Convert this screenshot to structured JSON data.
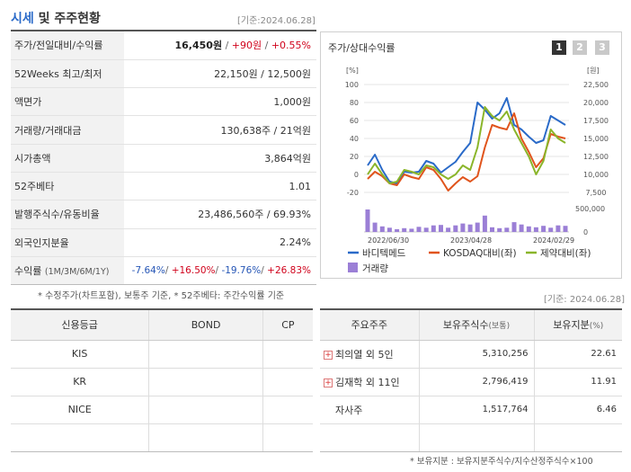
{
  "header": {
    "title_part1": "시세",
    "title_part2": "및 주주현황",
    "base_date": "[기준:2024.06.28]"
  },
  "quote": {
    "rows": [
      {
        "label": "주가/전일대비/수익률",
        "price": "16,450원",
        "change": "+90원",
        "rate": "+0.55%"
      },
      {
        "label": "52Weeks 최고/최저",
        "value": "22,150원 / 12,500원"
      },
      {
        "label": "액면가",
        "value": "1,000원"
      },
      {
        "label": "거래량/거래대금",
        "value": "130,638주 / 21억원"
      },
      {
        "label": "시가총액",
        "value": "3,864억원"
      },
      {
        "label": "52주베타",
        "value": "1.01"
      },
      {
        "label": "발행주식수/유동비율",
        "value": "23,486,560주 / 69.93%"
      },
      {
        "label": "외국인지분율",
        "value": "2.24%"
      }
    ],
    "returns": {
      "label": "수익률",
      "label_sub": "(1M/3M/6M/1Y)",
      "r1m": "-7.64%",
      "r3m": "+16.50%",
      "r6m": "-19.76%",
      "r1y": "+26.83%"
    },
    "note": "* 수정주가(차트포함), 보통주 기준, * 52주베타: 주간수익률 기준"
  },
  "chart_panel": {
    "title": "주가/상대수익률",
    "period_buttons": [
      "1",
      "2",
      "3"
    ]
  },
  "chart_data": {
    "type": "line",
    "left_axis_unit": "[%]",
    "right_axis_unit": "[원]",
    "left_ticks": [
      100,
      80,
      60,
      40,
      20,
      0,
      -20
    ],
    "right_ticks": [
      "22,500",
      "20,000",
      "17,500",
      "15,000",
      "12,500",
      "10,000",
      "7,500"
    ],
    "volume_tick": "500,000",
    "volume_tick_zero": "0",
    "x_labels": [
      "2022/06/30",
      "2023/04/28",
      "2024/02/29"
    ],
    "ylim_left": [
      -20,
      100
    ],
    "series": [
      {
        "name": "바디텍메드",
        "color": "#2a6ac8",
        "values": [
          10,
          22,
          5,
          -8,
          -10,
          3,
          2,
          3,
          15,
          12,
          2,
          8,
          14,
          25,
          35,
          80,
          72,
          62,
          68,
          85,
          55,
          50,
          42,
          35,
          38,
          65,
          60,
          55
        ]
      },
      {
        "name": "KOSDAQ대비(좌)",
        "color": "#e0541c",
        "values": [
          -5,
          3,
          -2,
          -10,
          -12,
          0,
          -3,
          -5,
          8,
          5,
          -5,
          -18,
          -10,
          -3,
          -8,
          -2,
          30,
          55,
          52,
          50,
          68,
          40,
          25,
          8,
          18,
          45,
          42,
          40
        ]
      },
      {
        "name": "제약대비(좌)",
        "color": "#8ab52a",
        "values": [
          0,
          12,
          0,
          -10,
          -8,
          5,
          3,
          0,
          10,
          8,
          0,
          -5,
          0,
          10,
          5,
          30,
          75,
          65,
          60,
          70,
          50,
          35,
          20,
          0,
          15,
          50,
          40,
          35
        ]
      }
    ],
    "volume": {
      "name": "거래량",
      "color": "#9b7fd6",
      "values": [
        480000,
        200000,
        120000,
        90000,
        60000,
        80000,
        70000,
        110000,
        90000,
        140000,
        150000,
        90000,
        140000,
        180000,
        160000,
        200000,
        350000,
        100000,
        80000,
        90000,
        210000,
        160000,
        120000,
        100000,
        130000,
        90000,
        140000,
        130000
      ]
    }
  },
  "mid_base_date": "[기준: 2024.06.28]",
  "credit": {
    "headers": [
      "신용등급",
      "BOND",
      "CP"
    ],
    "rows": [
      [
        "KIS",
        "",
        ""
      ],
      [
        "KR",
        "",
        ""
      ],
      [
        "NICE",
        "",
        ""
      ],
      [
        "",
        "",
        ""
      ]
    ]
  },
  "holders": {
    "headers": [
      "주요주주",
      "보유주식수",
      "(보통)",
      "보유지분",
      "(%)"
    ],
    "rows": [
      {
        "name": "최의열 외 5인",
        "shares": "5,310,256",
        "pct": "22.61",
        "expand": true
      },
      {
        "name": "김재학 외 11인",
        "shares": "2,796,419",
        "pct": "11.91",
        "expand": true
      },
      {
        "name": "자사주",
        "shares": "1,517,764",
        "pct": "6.46",
        "expand": false
      },
      {
        "name": "",
        "shares": "",
        "pct": "",
        "expand": false
      }
    ],
    "note": "* 보유지분 : 보유지분주식수/지수산정주식수×100"
  }
}
